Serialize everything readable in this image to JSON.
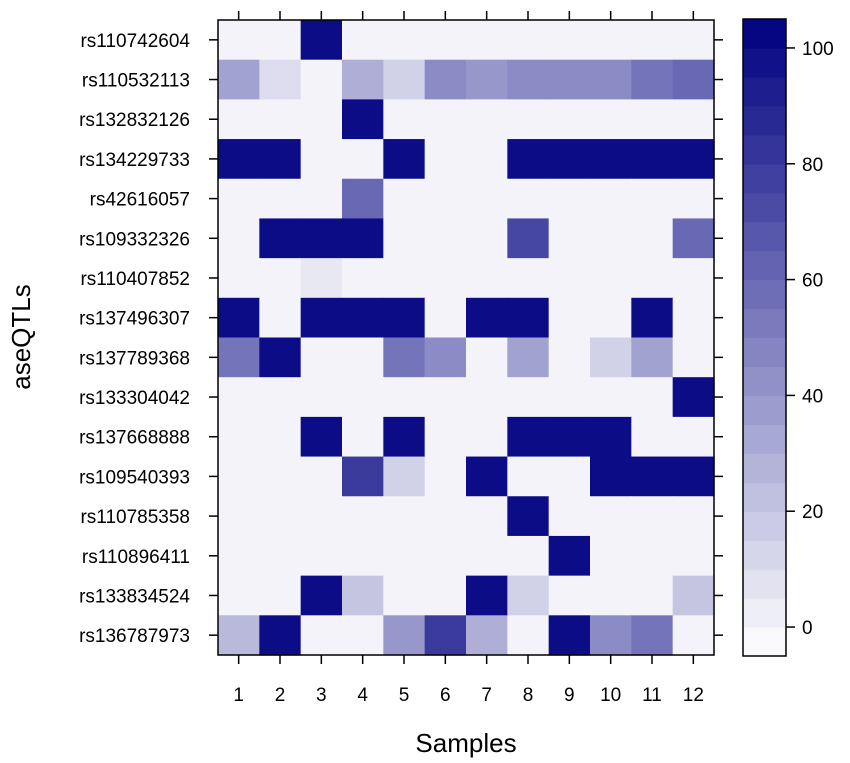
{
  "chart_data": {
    "type": "heatmap",
    "xlabel": "Samples",
    "ylabel": "aseQTLs",
    "x_categories": [
      "1",
      "2",
      "3",
      "4",
      "5",
      "6",
      "7",
      "8",
      "9",
      "10",
      "11",
      "12"
    ],
    "y_categories": [
      "rs110742604",
      "rs110532113",
      "rs132832126",
      "rs134229733",
      "rs42616057",
      "rs109332326",
      "rs110407852",
      "rs137496307",
      "rs137789368",
      "rs133304042",
      "rs137668888",
      "rs109540393",
      "rs110785358",
      "rs110896411",
      "rs133834524",
      "rs136787973"
    ],
    "values": [
      [
        0,
        0,
        100,
        0,
        0,
        0,
        0,
        0,
        0,
        0,
        0,
        0
      ],
      [
        35,
        10,
        0,
        30,
        15,
        45,
        40,
        45,
        45,
        45,
        55,
        60
      ],
      [
        0,
        0,
        0,
        100,
        0,
        0,
        0,
        0,
        0,
        0,
        0,
        0
      ],
      [
        100,
        100,
        0,
        0,
        100,
        0,
        0,
        100,
        100,
        100,
        100,
        100
      ],
      [
        0,
        0,
        0,
        60,
        0,
        0,
        0,
        0,
        0,
        0,
        0,
        0
      ],
      [
        0,
        100,
        100,
        100,
        0,
        0,
        0,
        75,
        0,
        0,
        0,
        60
      ],
      [
        0,
        0,
        5,
        0,
        0,
        0,
        0,
        0,
        0,
        0,
        0,
        0
      ],
      [
        100,
        0,
        100,
        100,
        100,
        0,
        100,
        100,
        0,
        0,
        100,
        0
      ],
      [
        55,
        100,
        0,
        0,
        55,
        45,
        0,
        35,
        0,
        15,
        35,
        0
      ],
      [
        0,
        0,
        0,
        0,
        0,
        0,
        0,
        0,
        0,
        0,
        0,
        100
      ],
      [
        0,
        0,
        100,
        0,
        100,
        0,
        0,
        100,
        100,
        100,
        0,
        0
      ],
      [
        0,
        0,
        0,
        80,
        15,
        0,
        100,
        0,
        0,
        100,
        100,
        100
      ],
      [
        0,
        0,
        0,
        0,
        0,
        0,
        0,
        100,
        0,
        0,
        0,
        0
      ],
      [
        0,
        0,
        0,
        0,
        0,
        0,
        0,
        0,
        100,
        0,
        0,
        0
      ],
      [
        0,
        0,
        100,
        20,
        0,
        0,
        100,
        15,
        0,
        0,
        0,
        20
      ],
      [
        25,
        100,
        0,
        0,
        40,
        80,
        30,
        0,
        100,
        45,
        55,
        0
      ]
    ],
    "colorbar": {
      "ticks": [
        0,
        20,
        40,
        60,
        80,
        100
      ],
      "range": [
        -5,
        105
      ],
      "low_color": "#ffffff",
      "high_color": "#000080"
    }
  }
}
